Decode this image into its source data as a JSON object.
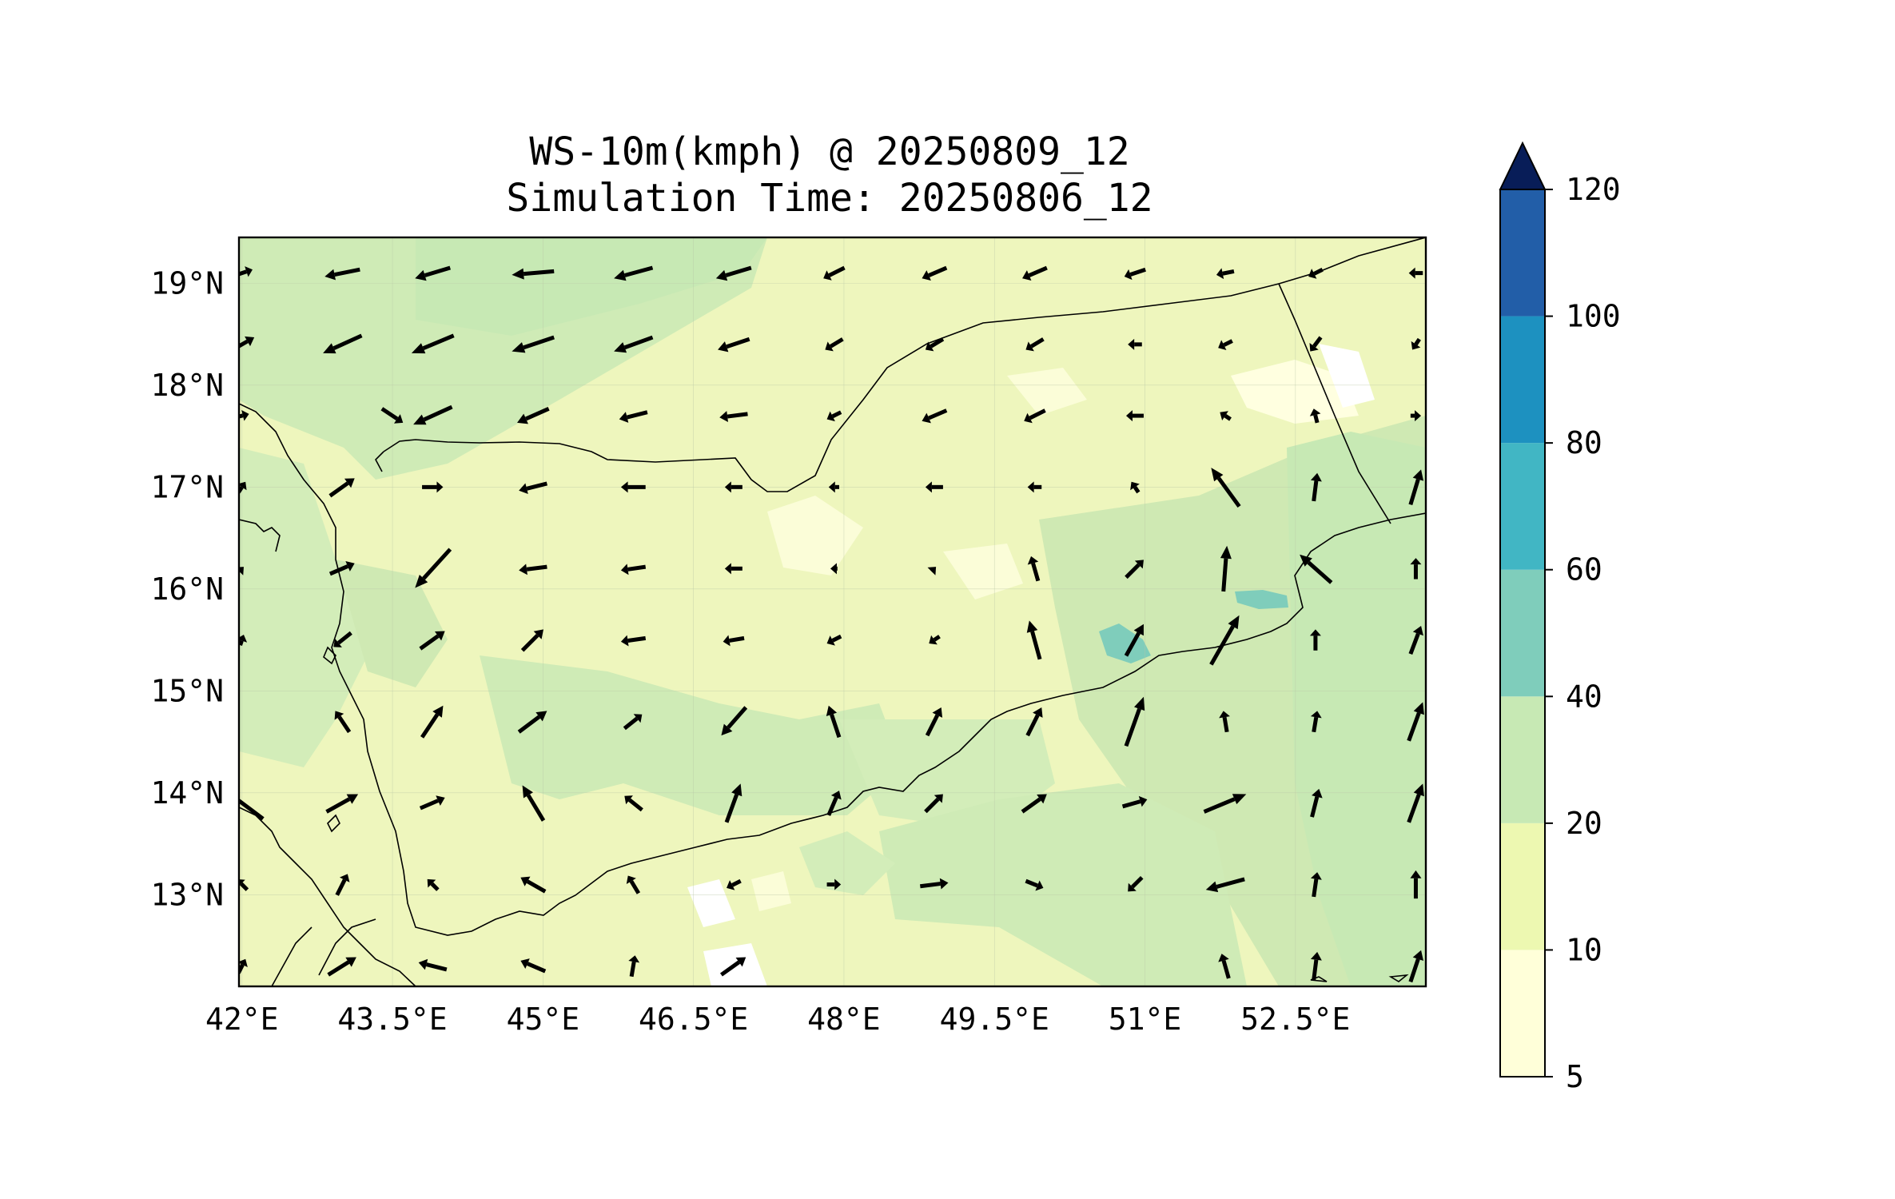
{
  "title_line1": "WS-10m(kmph) @ 20250809_12",
  "title_line2": "Simulation Time: 20250806_12",
  "map": {
    "lon_range": [
      41.97,
      53.8
    ],
    "lat_range": [
      12.1,
      19.45
    ],
    "x_ticks": [
      "42°E",
      "43.5°E",
      "45°E",
      "46.5°E",
      "48°E",
      "49.5°E",
      "51°E",
      "52.5°E"
    ],
    "x_tick_values": [
      42,
      43.5,
      45,
      46.5,
      48,
      49.5,
      51,
      52.5
    ],
    "y_ticks": [
      "19°N",
      "18°N",
      "17°N",
      "16°N",
      "15°N",
      "14°N",
      "13°N"
    ],
    "y_tick_values": [
      19,
      18,
      17,
      16,
      15,
      14,
      13
    ],
    "background_color": "#eef6bd"
  },
  "colorbar": {
    "labels": [
      "5",
      "10",
      "20",
      "40",
      "60",
      "80",
      "100",
      "120"
    ],
    "colors": [
      "#ffffd9",
      "#edf8b1",
      "#c7e9b4",
      "#7fcdbb",
      "#41b6c4",
      "#1d91c0",
      "#225ea8",
      "#253494"
    ],
    "extend_color": "#081d58"
  },
  "vector_field": {
    "description_units": "approx 10m wind direction vectors (dx, dy in kmph-ish relative scale)",
    "rows": [
      {
        "lat": 19.1,
        "vectors": [
          [
            42.0,
            [
              12,
              4
            ]
          ],
          [
            43.0,
            [
              -20,
              -4
            ]
          ],
          [
            43.9,
            [
              -20,
              -6
            ]
          ],
          [
            44.9,
            [
              -24,
              -2
            ]
          ],
          [
            45.9,
            [
              -22,
              -6
            ]
          ],
          [
            46.9,
            [
              -20,
              -6
            ]
          ],
          [
            47.9,
            [
              -12,
              -6
            ]
          ],
          [
            48.9,
            [
              -14,
              -6
            ]
          ],
          [
            49.9,
            [
              -14,
              -6
            ]
          ],
          [
            50.9,
            [
              -12,
              -4
            ]
          ],
          [
            51.8,
            [
              -10,
              -2
            ]
          ],
          [
            52.7,
            [
              -8,
              -4
            ]
          ],
          [
            53.7,
            [
              -8,
              0
            ]
          ]
        ]
      },
      {
        "lat": 18.4,
        "vectors": [
          [
            42.0,
            [
              14,
              8
            ]
          ],
          [
            43.0,
            [
              -22,
              -10
            ]
          ],
          [
            43.9,
            [
              -24,
              -10
            ]
          ],
          [
            44.9,
            [
              -24,
              -8
            ]
          ],
          [
            45.9,
            [
              -22,
              -8
            ]
          ],
          [
            46.9,
            [
              -18,
              -6
            ]
          ],
          [
            47.9,
            [
              -10,
              -6
            ]
          ],
          [
            48.9,
            [
              -10,
              -6
            ]
          ],
          [
            49.9,
            [
              -10,
              -6
            ]
          ],
          [
            50.9,
            [
              -8,
              0
            ]
          ],
          [
            51.8,
            [
              -8,
              -4
            ]
          ],
          [
            52.7,
            [
              -6,
              -8
            ]
          ],
          [
            53.7,
            [
              -4,
              -6
            ]
          ]
        ]
      },
      {
        "lat": 17.7,
        "vectors": [
          [
            42.0,
            [
              8,
              2
            ]
          ],
          [
            43.0,
            [
              0,
              0
            ]
          ],
          [
            43.5,
            [
              12,
              -8
            ]
          ],
          [
            43.9,
            [
              -22,
              -10
            ]
          ],
          [
            44.9,
            [
              -18,
              -8
            ]
          ],
          [
            45.9,
            [
              -16,
              -4
            ]
          ],
          [
            46.9,
            [
              -16,
              -2
            ]
          ],
          [
            47.9,
            [
              -8,
              -4
            ]
          ],
          [
            48.9,
            [
              -14,
              -6
            ]
          ],
          [
            49.9,
            [
              -12,
              -6
            ]
          ],
          [
            50.9,
            [
              -10,
              0
            ]
          ],
          [
            51.8,
            [
              -6,
              4
            ]
          ],
          [
            52.7,
            [
              -2,
              8
            ]
          ],
          [
            53.7,
            [
              6,
              0
            ]
          ]
        ]
      },
      {
        "lat": 17.0,
        "vectors": [
          [
            42.0,
            [
              4,
              6
            ]
          ],
          [
            43.0,
            [
              14,
              10
            ]
          ],
          [
            43.9,
            [
              12,
              0
            ]
          ],
          [
            44.9,
            [
              -16,
              -4
            ]
          ],
          [
            45.9,
            [
              -14,
              0
            ]
          ],
          [
            46.9,
            [
              -10,
              0
            ]
          ],
          [
            47.9,
            [
              -6,
              0
            ]
          ],
          [
            48.9,
            [
              -10,
              0
            ]
          ],
          [
            49.9,
            [
              -8,
              0
            ]
          ],
          [
            50.9,
            [
              -4,
              6
            ]
          ],
          [
            51.8,
            [
              -16,
              22
            ]
          ],
          [
            52.7,
            [
              2,
              16
            ]
          ],
          [
            53.7,
            [
              6,
              20
            ]
          ]
        ]
      },
      {
        "lat": 16.2,
        "vectors": [
          [
            42.0,
            [
              2,
              2
            ]
          ],
          [
            43.0,
            [
              14,
              6
            ]
          ],
          [
            43.9,
            [
              -20,
              -22
            ]
          ],
          [
            44.9,
            [
              -16,
              -2
            ]
          ],
          [
            45.9,
            [
              -14,
              -2
            ]
          ],
          [
            46.9,
            [
              -10,
              0
            ]
          ],
          [
            47.9,
            [
              -4,
              0
            ]
          ],
          [
            48.9,
            [
              2,
              2
            ]
          ],
          [
            49.9,
            [
              -4,
              14
            ]
          ],
          [
            50.9,
            [
              10,
              10
            ]
          ],
          [
            51.8,
            [
              2,
              26
            ]
          ],
          [
            52.7,
            [
              -18,
              16
            ]
          ],
          [
            53.7,
            [
              0,
              12
            ]
          ]
        ]
      },
      {
        "lat": 15.5,
        "vectors": [
          [
            42.0,
            [
              2,
              6
            ]
          ],
          [
            43.0,
            [
              -10,
              -8
            ]
          ],
          [
            43.9,
            [
              14,
              10
            ]
          ],
          [
            44.9,
            [
              12,
              12
            ]
          ],
          [
            45.9,
            [
              -14,
              -2
            ]
          ],
          [
            46.9,
            [
              -12,
              -2
            ]
          ],
          [
            47.9,
            [
              -8,
              -4
            ]
          ],
          [
            48.9,
            [
              -6,
              -4
            ]
          ],
          [
            49.9,
            [
              -6,
              22
            ]
          ],
          [
            50.9,
            [
              10,
              18
            ]
          ],
          [
            51.8,
            [
              16,
              28
            ]
          ],
          [
            52.7,
            [
              0,
              12
            ]
          ],
          [
            53.7,
            [
              6,
              16
            ]
          ]
        ]
      },
      {
        "lat": 14.7,
        "vectors": [
          [
            42.0,
            [
              0,
              0
            ]
          ],
          [
            43.0,
            [
              -8,
              12
            ]
          ],
          [
            43.9,
            [
              12,
              18
            ]
          ],
          [
            44.9,
            [
              16,
              12
            ]
          ],
          [
            45.9,
            [
              10,
              8
            ]
          ],
          [
            46.9,
            [
              -14,
              -16
            ]
          ],
          [
            47.9,
            [
              -6,
              18
            ]
          ],
          [
            48.9,
            [
              8,
              16
            ]
          ],
          [
            49.9,
            [
              8,
              16
            ]
          ],
          [
            50.9,
            [
              10,
              28
            ]
          ],
          [
            51.8,
            [
              -2,
              12
            ]
          ],
          [
            52.7,
            [
              2,
              12
            ]
          ],
          [
            53.7,
            [
              8,
              22
            ]
          ]
        ]
      },
      {
        "lat": 13.9,
        "vectors": [
          [
            42.0,
            [
              -24,
              18
            ]
          ],
          [
            43.0,
            [
              18,
              10
            ]
          ],
          [
            43.9,
            [
              14,
              6
            ]
          ],
          [
            44.9,
            [
              -12,
              20
            ]
          ],
          [
            45.9,
            [
              -10,
              8
            ]
          ],
          [
            46.9,
            [
              8,
              22
            ]
          ],
          [
            47.9,
            [
              6,
              14
            ]
          ],
          [
            48.9,
            [
              10,
              10
            ]
          ],
          [
            49.9,
            [
              14,
              10
            ]
          ],
          [
            50.9,
            [
              14,
              4
            ]
          ],
          [
            51.8,
            [
              24,
              10
            ]
          ],
          [
            52.7,
            [
              4,
              16
            ]
          ],
          [
            53.7,
            [
              8,
              22
            ]
          ]
        ]
      },
      {
        "lat": 13.1,
        "vectors": [
          [
            42.0,
            [
              -6,
              6
            ]
          ],
          [
            43.0,
            [
              6,
              12
            ]
          ],
          [
            43.9,
            [
              -6,
              6
            ]
          ],
          [
            44.9,
            [
              -14,
              8
            ]
          ],
          [
            45.9,
            [
              -6,
              10
            ]
          ],
          [
            46.9,
            [
              -8,
              -4
            ]
          ],
          [
            47.9,
            [
              8,
              0
            ]
          ],
          [
            48.9,
            [
              16,
              2
            ]
          ],
          [
            49.9,
            [
              10,
              -4
            ]
          ],
          [
            50.9,
            [
              -8,
              -8
            ]
          ],
          [
            51.8,
            [
              -22,
              -6
            ]
          ],
          [
            52.7,
            [
              2,
              14
            ]
          ],
          [
            53.7,
            [
              0,
              16
            ]
          ]
        ]
      },
      {
        "lat": 12.3,
        "vectors": [
          [
            42.0,
            [
              4,
              8
            ]
          ],
          [
            43.0,
            [
              16,
              10
            ]
          ],
          [
            43.9,
            [
              -16,
              4
            ]
          ],
          [
            44.9,
            [
              -14,
              6
            ]
          ],
          [
            45.9,
            [
              2,
              12
            ]
          ],
          [
            46.9,
            [
              14,
              10
            ]
          ],
          [
            47.9,
            [
              0,
              0
            ]
          ],
          [
            48.9,
            [
              0,
              0
            ]
          ],
          [
            49.9,
            [
              0,
              0
            ]
          ],
          [
            50.9,
            [
              0,
              0
            ]
          ],
          [
            51.8,
            [
              -4,
              14
            ]
          ],
          [
            52.7,
            [
              2,
              16
            ]
          ],
          [
            53.7,
            [
              6,
              18
            ]
          ]
        ]
      }
    ]
  }
}
